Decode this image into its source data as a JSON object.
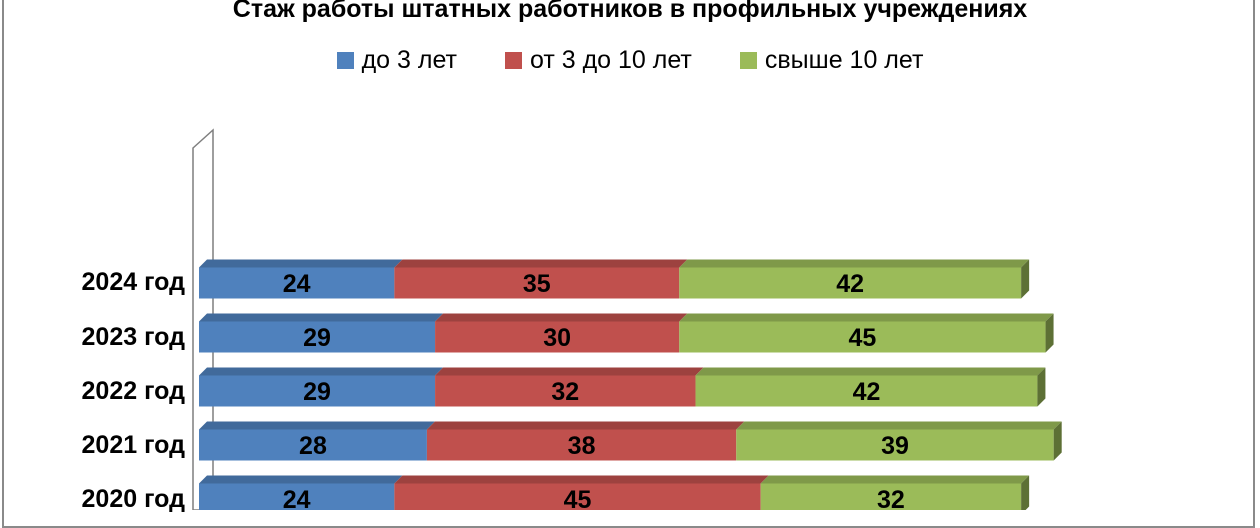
{
  "chart_data": {
    "type": "bar",
    "orientation": "horizontal",
    "stacked": true,
    "title": "Стаж работы  штатных работников  в профильных учреждениях",
    "categories": [
      "2024 год",
      "2023 год",
      "2022 год",
      "2021 год",
      "2020 год"
    ],
    "series": [
      {
        "name": "до  3 лет",
        "color": "#4f81bd",
        "values": [
          24,
          29,
          29,
          28,
          24
        ]
      },
      {
        "name": "от 3 до 10 лет",
        "color": "#c0504d",
        "values": [
          35,
          30,
          32,
          38,
          45
        ]
      },
      {
        "name": "свыше 10 лет",
        "color": "#9bbb59",
        "values": [
          42,
          45,
          42,
          39,
          32
        ]
      }
    ],
    "legend_position": "top",
    "data_labels": true,
    "grid": false
  }
}
